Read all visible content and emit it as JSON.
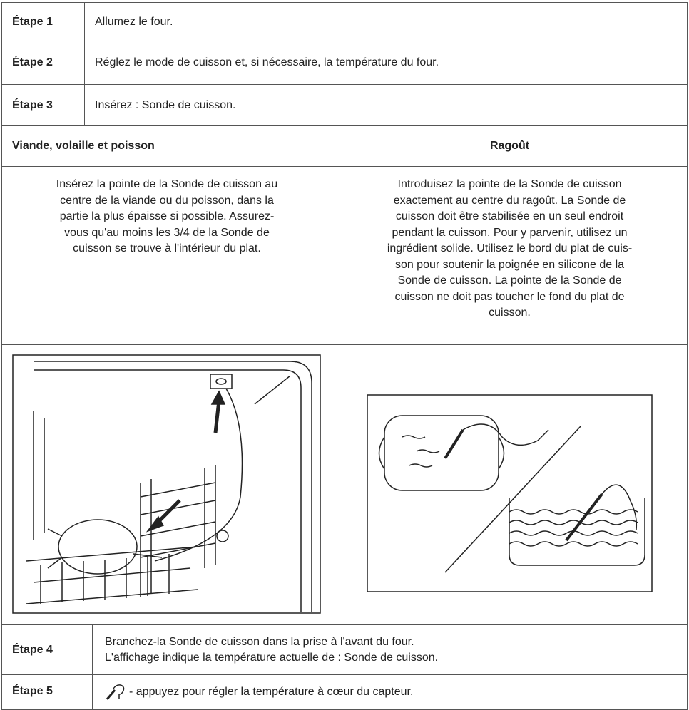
{
  "steps": [
    {
      "label": "Étape 1",
      "text": "Allumez le four."
    },
    {
      "label": "Étape 2",
      "text": "Réglez le mode de cuisson et, si nécessaire, la température du four."
    },
    {
      "label": "Étape 3",
      "text": "Insérez : Sonde de cuisson."
    }
  ],
  "columns": [
    {
      "heading": "Viande, volaille et poisson",
      "lines": [
        "Insérez la pointe de la Sonde de cuisson au",
        "centre de la viande ou du poisson, dans la",
        "partie la plus épaisse si possible. Assurez-",
        "vous qu'au moins les 3/4 de la Sonde de",
        "cuisson se trouve à l'intérieur du plat."
      ]
    },
    {
      "heading": "Ragoût",
      "lines": [
        "Introduisez la pointe de la Sonde de cuisson",
        "exactement au centre du ragoût. La Sonde de",
        "cuisson doit être stabilisée en un seul endroit",
        "pendant la cuisson. Pour y parvenir, utilisez un",
        "ingrédient solide. Utilisez le bord du plat de cuis-",
        "son pour soutenir la poignée en silicone de la",
        "Sonde de cuisson. La pointe de la Sonde de",
        "cuisson ne doit pas toucher le fond du plat de",
        "cuisson."
      ]
    }
  ],
  "later_steps": [
    {
      "label": "Étape 4",
      "lines": [
        "Branchez-la Sonde de cuisson dans la prise à l'avant du four.",
        "L'affichage indique la température actuelle de : Sonde de cuisson."
      ]
    },
    {
      "label": "Étape 5",
      "text": "- appuyez pour régler la température à cœur du capteur."
    }
  ]
}
